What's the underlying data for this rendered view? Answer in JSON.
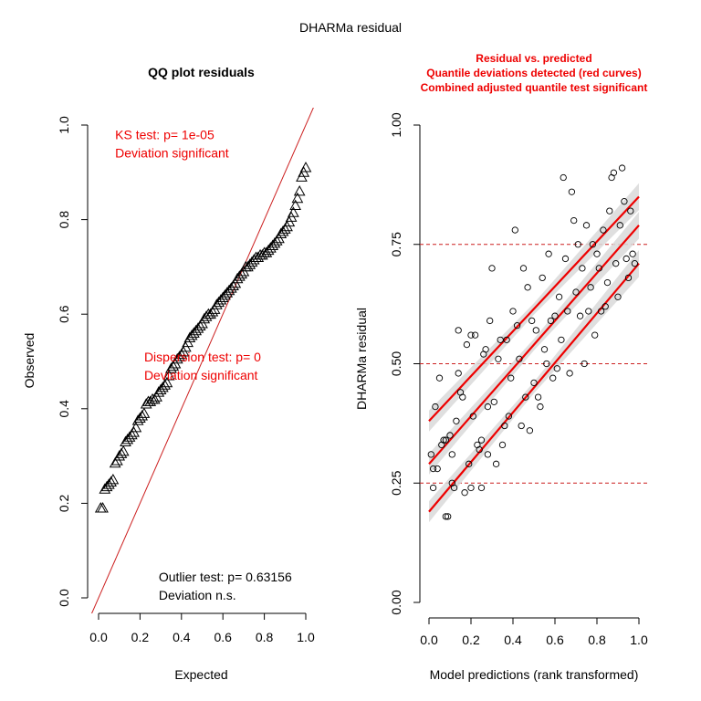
{
  "figure_title": "DHARMa residual",
  "colors": {
    "ink": "#000000",
    "accent_red": "#ee0000",
    "band_grey": "#d9d9d9",
    "reference_line": "#cc1f1f"
  },
  "chart_data": [
    {
      "id": "qq",
      "type": "scatter",
      "title": "QQ plot residuals",
      "xlabel": "Expected",
      "ylabel": "Observed",
      "xlim": [
        0,
        1
      ],
      "ylim": [
        0,
        1
      ],
      "xticks": [
        "0.0",
        "0.2",
        "0.4",
        "0.6",
        "0.8",
        "1.0"
      ],
      "yticks": [
        "0.0",
        "0.2",
        "0.4",
        "0.6",
        "0.8",
        "1.0"
      ],
      "marker": "triangle",
      "reference_line": {
        "from": [
          0,
          0
        ],
        "to": [
          1,
          1
        ]
      },
      "points": [
        [
          0.01,
          0.19
        ],
        [
          0.02,
          0.19
        ],
        [
          0.03,
          0.23
        ],
        [
          0.04,
          0.235
        ],
        [
          0.05,
          0.24
        ],
        [
          0.06,
          0.245
        ],
        [
          0.07,
          0.25
        ],
        [
          0.08,
          0.285
        ],
        [
          0.09,
          0.29
        ],
        [
          0.1,
          0.3
        ],
        [
          0.11,
          0.305
        ],
        [
          0.12,
          0.31
        ],
        [
          0.13,
          0.33
        ],
        [
          0.14,
          0.335
        ],
        [
          0.15,
          0.34
        ],
        [
          0.16,
          0.345
        ],
        [
          0.17,
          0.35
        ],
        [
          0.18,
          0.36
        ],
        [
          0.19,
          0.375
        ],
        [
          0.2,
          0.38
        ],
        [
          0.21,
          0.385
        ],
        [
          0.22,
          0.39
        ],
        [
          0.23,
          0.41
        ],
        [
          0.24,
          0.415
        ],
        [
          0.25,
          0.415
        ],
        [
          0.26,
          0.42
        ],
        [
          0.27,
          0.42
        ],
        [
          0.28,
          0.425
        ],
        [
          0.29,
          0.435
        ],
        [
          0.3,
          0.44
        ],
        [
          0.31,
          0.445
        ],
        [
          0.32,
          0.45
        ],
        [
          0.33,
          0.455
        ],
        [
          0.34,
          0.47
        ],
        [
          0.35,
          0.485
        ],
        [
          0.36,
          0.49
        ],
        [
          0.37,
          0.495
        ],
        [
          0.38,
          0.505
        ],
        [
          0.39,
          0.51
        ],
        [
          0.4,
          0.515
        ],
        [
          0.41,
          0.52
        ],
        [
          0.42,
          0.53
        ],
        [
          0.43,
          0.54
        ],
        [
          0.44,
          0.55
        ],
        [
          0.45,
          0.555
        ],
        [
          0.46,
          0.56
        ],
        [
          0.47,
          0.565
        ],
        [
          0.48,
          0.57
        ],
        [
          0.49,
          0.575
        ],
        [
          0.5,
          0.58
        ],
        [
          0.51,
          0.59
        ],
        [
          0.52,
          0.595
        ],
        [
          0.53,
          0.6
        ],
        [
          0.54,
          0.6
        ],
        [
          0.55,
          0.605
        ],
        [
          0.56,
          0.61
        ],
        [
          0.57,
          0.62
        ],
        [
          0.58,
          0.625
        ],
        [
          0.59,
          0.63
        ],
        [
          0.6,
          0.635
        ],
        [
          0.61,
          0.64
        ],
        [
          0.62,
          0.645
        ],
        [
          0.63,
          0.65
        ],
        [
          0.64,
          0.655
        ],
        [
          0.65,
          0.66
        ],
        [
          0.66,
          0.665
        ],
        [
          0.67,
          0.675
        ],
        [
          0.68,
          0.68
        ],
        [
          0.69,
          0.685
        ],
        [
          0.7,
          0.69
        ],
        [
          0.71,
          0.7
        ],
        [
          0.72,
          0.7
        ],
        [
          0.73,
          0.705
        ],
        [
          0.74,
          0.71
        ],
        [
          0.75,
          0.715
        ],
        [
          0.76,
          0.72
        ],
        [
          0.77,
          0.72
        ],
        [
          0.78,
          0.725
        ],
        [
          0.79,
          0.725
        ],
        [
          0.8,
          0.73
        ],
        [
          0.81,
          0.73
        ],
        [
          0.82,
          0.735
        ],
        [
          0.83,
          0.74
        ],
        [
          0.84,
          0.745
        ],
        [
          0.85,
          0.75
        ],
        [
          0.86,
          0.755
        ],
        [
          0.87,
          0.76
        ],
        [
          0.88,
          0.77
        ],
        [
          0.89,
          0.775
        ],
        [
          0.9,
          0.78
        ],
        [
          0.91,
          0.785
        ],
        [
          0.92,
          0.795
        ],
        [
          0.93,
          0.805
        ],
        [
          0.94,
          0.815
        ],
        [
          0.95,
          0.83
        ],
        [
          0.96,
          0.845
        ],
        [
          0.97,
          0.86
        ],
        [
          0.98,
          0.89
        ],
        [
          0.99,
          0.9
        ],
        [
          1.0,
          0.91
        ]
      ],
      "annotations": [
        {
          "lines": [
            "KS test: p= 1e-05",
            "Deviation  significant"
          ],
          "color": "#ee0000",
          "x": 0.08,
          "y": 0.97
        },
        {
          "lines": [
            "Dispersion test: p= 0",
            "Deviation  significant"
          ],
          "color": "#ee0000",
          "x": 0.22,
          "y": 0.5
        },
        {
          "lines": [
            "Outlier test: p= 0.63156",
            "Deviation  n.s."
          ],
          "color": "#000000",
          "x": 0.29,
          "y": 0.035
        }
      ]
    },
    {
      "id": "resid",
      "type": "scatter",
      "title_lines": [
        "Residual vs. predicted",
        "Quantile deviations detected (red curves)",
        "Combined adjusted quantile test significant"
      ],
      "xlabel": "Model predictions (rank transformed)",
      "ylabel": "DHARMa residual",
      "xlim": [
        0,
        1
      ],
      "ylim": [
        0,
        1
      ],
      "xticks": [
        "0.0",
        "0.2",
        "0.4",
        "0.6",
        "0.8",
        "1.0"
      ],
      "yticks": [
        "0.00",
        "0.25",
        "0.50",
        "0.75",
        "1.00"
      ],
      "marker": "circle",
      "reference_lines_y": [
        0.25,
        0.5,
        0.75
      ],
      "quantile_curves": [
        {
          "from": [
            0,
            0.19
          ],
          "to": [
            1,
            0.71
          ]
        },
        {
          "from": [
            0,
            0.29
          ],
          "to": [
            1,
            0.79
          ]
        },
        {
          "from": [
            0,
            0.38
          ],
          "to": [
            1,
            0.85
          ]
        }
      ],
      "points": [
        [
          0.01,
          0.31
        ],
        [
          0.02,
          0.28
        ],
        [
          0.02,
          0.24
        ],
        [
          0.03,
          0.41
        ],
        [
          0.04,
          0.28
        ],
        [
          0.05,
          0.47
        ],
        [
          0.06,
          0.33
        ],
        [
          0.07,
          0.34
        ],
        [
          0.08,
          0.18
        ],
        [
          0.08,
          0.34
        ],
        [
          0.09,
          0.18
        ],
        [
          0.1,
          0.35
        ],
        [
          0.11,
          0.31
        ],
        [
          0.11,
          0.25
        ],
        [
          0.12,
          0.24
        ],
        [
          0.13,
          0.38
        ],
        [
          0.14,
          0.48
        ],
        [
          0.14,
          0.57
        ],
        [
          0.15,
          0.44
        ],
        [
          0.16,
          0.43
        ],
        [
          0.17,
          0.23
        ],
        [
          0.18,
          0.54
        ],
        [
          0.19,
          0.29
        ],
        [
          0.2,
          0.56
        ],
        [
          0.2,
          0.24
        ],
        [
          0.21,
          0.39
        ],
        [
          0.22,
          0.56
        ],
        [
          0.23,
          0.33
        ],
        [
          0.24,
          0.32
        ],
        [
          0.25,
          0.34
        ],
        [
          0.25,
          0.24
        ],
        [
          0.26,
          0.52
        ],
        [
          0.27,
          0.53
        ],
        [
          0.28,
          0.41
        ],
        [
          0.28,
          0.31
        ],
        [
          0.29,
          0.59
        ],
        [
          0.3,
          0.7
        ],
        [
          0.31,
          0.42
        ],
        [
          0.32,
          0.29
        ],
        [
          0.33,
          0.51
        ],
        [
          0.34,
          0.55
        ],
        [
          0.35,
          0.33
        ],
        [
          0.36,
          0.37
        ],
        [
          0.37,
          0.55
        ],
        [
          0.38,
          0.39
        ],
        [
          0.39,
          0.47
        ],
        [
          0.4,
          0.61
        ],
        [
          0.41,
          0.78
        ],
        [
          0.42,
          0.58
        ],
        [
          0.43,
          0.51
        ],
        [
          0.44,
          0.37
        ],
        [
          0.45,
          0.7
        ],
        [
          0.46,
          0.43
        ],
        [
          0.47,
          0.66
        ],
        [
          0.48,
          0.36
        ],
        [
          0.49,
          0.59
        ],
        [
          0.5,
          0.46
        ],
        [
          0.51,
          0.57
        ],
        [
          0.52,
          0.43
        ],
        [
          0.53,
          0.41
        ],
        [
          0.54,
          0.68
        ],
        [
          0.55,
          0.53
        ],
        [
          0.56,
          0.5
        ],
        [
          0.57,
          0.73
        ],
        [
          0.58,
          0.59
        ],
        [
          0.59,
          0.47
        ],
        [
          0.6,
          0.6
        ],
        [
          0.61,
          0.49
        ],
        [
          0.62,
          0.64
        ],
        [
          0.63,
          0.55
        ],
        [
          0.64,
          0.89
        ],
        [
          0.65,
          0.72
        ],
        [
          0.66,
          0.61
        ],
        [
          0.67,
          0.48
        ],
        [
          0.68,
          0.86
        ],
        [
          0.69,
          0.8
        ],
        [
          0.7,
          0.65
        ],
        [
          0.71,
          0.75
        ],
        [
          0.72,
          0.6
        ],
        [
          0.73,
          0.7
        ],
        [
          0.74,
          0.5
        ],
        [
          0.75,
          0.79
        ],
        [
          0.76,
          0.61
        ],
        [
          0.77,
          0.66
        ],
        [
          0.78,
          0.75
        ],
        [
          0.79,
          0.56
        ],
        [
          0.8,
          0.73
        ],
        [
          0.81,
          0.7
        ],
        [
          0.82,
          0.61
        ],
        [
          0.83,
          0.78
        ],
        [
          0.84,
          0.62
        ],
        [
          0.85,
          0.67
        ],
        [
          0.86,
          0.82
        ],
        [
          0.87,
          0.89
        ],
        [
          0.88,
          0.9
        ],
        [
          0.89,
          0.71
        ],
        [
          0.9,
          0.64
        ],
        [
          0.91,
          0.79
        ],
        [
          0.92,
          0.91
        ],
        [
          0.93,
          0.84
        ],
        [
          0.94,
          0.72
        ],
        [
          0.95,
          0.68
        ],
        [
          0.96,
          0.82
        ],
        [
          0.97,
          0.73
        ],
        [
          0.98,
          0.71
        ]
      ]
    }
  ]
}
